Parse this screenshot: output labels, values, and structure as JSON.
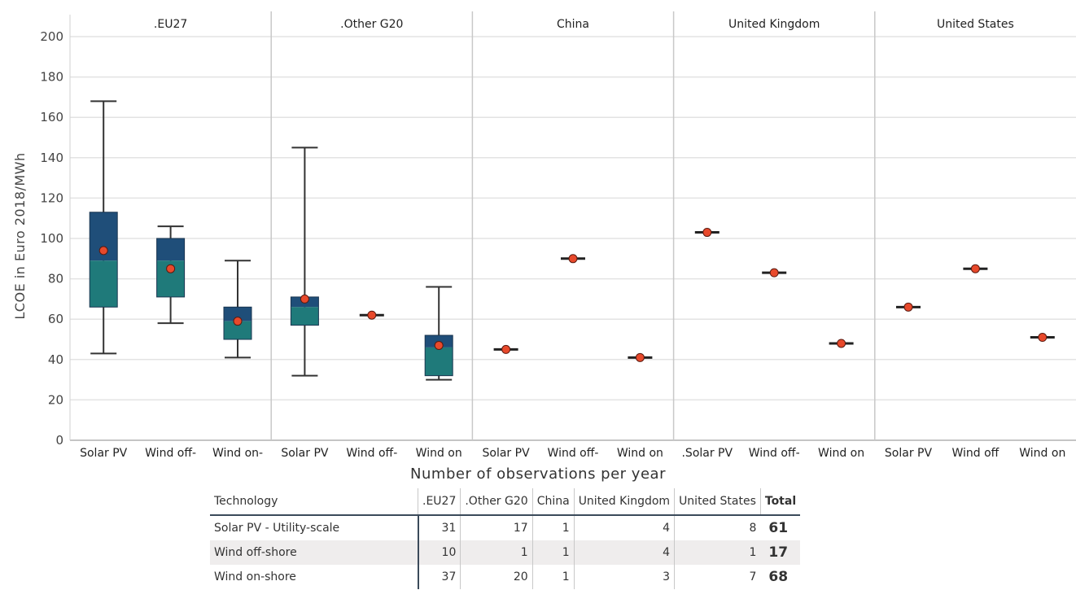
{
  "chart_data": {
    "type": "box",
    "ylabel": "LCOE in Euro 2018/MWh",
    "ylim": [
      0,
      200
    ],
    "yticks": [
      0,
      20,
      40,
      60,
      80,
      100,
      120,
      140,
      160,
      180,
      200
    ],
    "grid": true,
    "colors": {
      "upper_box": "#1f4e79",
      "lower_box": "#1f7a7a",
      "mean_marker": "#e8492b",
      "whisker": "#333333"
    },
    "panels": [
      {
        "title": ".EU27",
        "items": [
          {
            "category": "Solar PV",
            "min": 43,
            "q1": 66,
            "median": 89,
            "q3": 113,
            "max": 168,
            "mean": 94
          },
          {
            "category": "Wind off-",
            "min": 58,
            "q1": 71,
            "median": 89,
            "q3": 100,
            "max": 106,
            "mean": 85
          },
          {
            "category": "Wind on-",
            "min": 41,
            "q1": 50,
            "median": 59,
            "q3": 66,
            "max": 89,
            "mean": 59
          }
        ]
      },
      {
        "title": ".Other G20",
        "items": [
          {
            "category": "Solar PV",
            "min": 32,
            "q1": 57,
            "median": 66,
            "q3": 71,
            "max": 145,
            "mean": 70
          },
          {
            "category": "Wind off-",
            "min": 62,
            "q1": 62,
            "median": 62,
            "q3": 62,
            "max": 62,
            "mean": 62
          },
          {
            "category": "Wind on",
            "min": 30,
            "q1": 32,
            "median": 46,
            "q3": 52,
            "max": 76,
            "mean": 47
          }
        ]
      },
      {
        "title": "China",
        "items": [
          {
            "category": "Solar PV",
            "min": 45,
            "q1": 45,
            "median": 45,
            "q3": 45,
            "max": 45,
            "mean": 45
          },
          {
            "category": "Wind off-",
            "min": 90,
            "q1": 90,
            "median": 90,
            "q3": 90,
            "max": 90,
            "mean": 90
          },
          {
            "category": "Wind on",
            "min": 41,
            "q1": 41,
            "median": 41,
            "q3": 41,
            "max": 41,
            "mean": 41
          }
        ]
      },
      {
        "title": "United Kingdom",
        "items": [
          {
            "category": ".Solar PV",
            "min": 103,
            "q1": 103,
            "median": 103,
            "q3": 103,
            "max": 103,
            "mean": 103
          },
          {
            "category": "Wind off-",
            "min": 83,
            "q1": 83,
            "median": 83,
            "q3": 83,
            "max": 83,
            "mean": 83
          },
          {
            "category": "Wind on",
            "min": 48,
            "q1": 48,
            "median": 48,
            "q3": 48,
            "max": 48,
            "mean": 48
          }
        ]
      },
      {
        "title": "United States",
        "items": [
          {
            "category": "Solar PV",
            "min": 66,
            "q1": 66,
            "median": 66,
            "q3": 66,
            "max": 66,
            "mean": 66
          },
          {
            "category": "Wind off",
            "min": 85,
            "q1": 85,
            "median": 85,
            "q3": 85,
            "max": 85,
            "mean": 85
          },
          {
            "category": "Wind on",
            "min": 51,
            "q1": 51,
            "median": 51,
            "q3": 51,
            "max": 51,
            "mean": 51
          }
        ]
      }
    ]
  },
  "table": {
    "title": "Number of observations per year",
    "headers": [
      "Technology",
      ".EU27",
      ".Other G20",
      "China",
      "United Kingdom",
      "United States",
      "Total"
    ],
    "rows": [
      {
        "technology": "Solar PV - Utility-scale",
        "eu27": "31",
        "other_g20": "17",
        "china": "1",
        "uk": "4",
        "us": "8",
        "total": "61"
      },
      {
        "technology": "Wind off-shore",
        "eu27": "10",
        "other_g20": "1",
        "china": "1",
        "uk": "4",
        "us": "1",
        "total": "17"
      },
      {
        "technology": "Wind on-shore",
        "eu27": "37",
        "other_g20": "20",
        "china": "1",
        "uk": "3",
        "us": "7",
        "total": "68"
      }
    ]
  }
}
